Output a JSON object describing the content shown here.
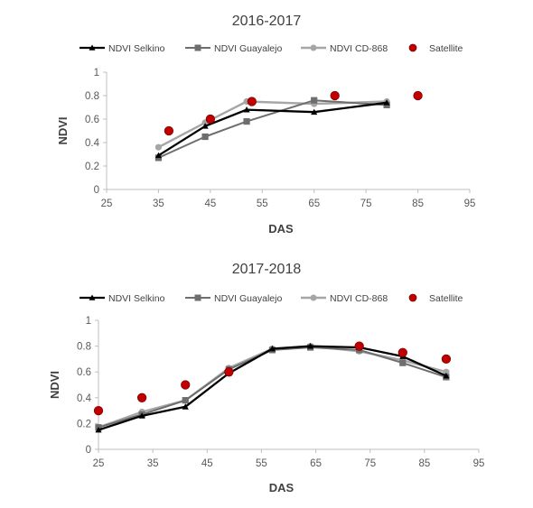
{
  "chart_data": [
    {
      "type": "line",
      "title": "2016-2017",
      "xlabel": "DAS",
      "ylabel": "NDVI",
      "xlim": [
        25,
        95
      ],
      "ylim": [
        0,
        1
      ],
      "xticks": [
        "25",
        "35",
        "45",
        "55",
        "65",
        "75",
        "85",
        "95"
      ],
      "yticks": [
        "0",
        "0.2",
        "0.4",
        "0.6",
        "0.8",
        "1"
      ],
      "grid": false,
      "legend_position": "top",
      "series": [
        {
          "name": "NDVI Selkino",
          "marker": "triangle",
          "color": "#000000",
          "x": [
            35,
            44,
            52,
            65,
            79
          ],
          "y": [
            0.29,
            0.54,
            0.68,
            0.66,
            0.74
          ]
        },
        {
          "name": "NDVI Guayalejo",
          "marker": "square",
          "color": "#6e6e6e",
          "x": [
            35,
            44,
            52,
            65,
            79
          ],
          "y": [
            0.27,
            0.45,
            0.58,
            0.76,
            0.72
          ]
        },
        {
          "name": "NDVI CD-868",
          "marker": "circle",
          "color": "#a6a6a6",
          "x": [
            35,
            44,
            52,
            65,
            79
          ],
          "y": [
            0.36,
            0.57,
            0.75,
            0.73,
            0.75
          ]
        },
        {
          "name": "Satellite",
          "marker": "dot",
          "color": "#c00000",
          "x": [
            37,
            45,
            53,
            69,
            85
          ],
          "y": [
            0.5,
            0.6,
            0.75,
            0.8,
            0.8
          ]
        }
      ]
    },
    {
      "type": "line",
      "title": "2017-2018",
      "xlabel": "DAS",
      "ylabel": "NDVI",
      "xlim": [
        25,
        95
      ],
      "ylim": [
        0,
        1
      ],
      "xticks": [
        "25",
        "35",
        "45",
        "55",
        "65",
        "75",
        "85",
        "95"
      ],
      "yticks": [
        "0",
        "0.2",
        "0.4",
        "0.6",
        "0.8",
        "1"
      ],
      "grid": false,
      "legend_position": "top",
      "series": [
        {
          "name": "NDVI Selkino",
          "marker": "triangle",
          "color": "#000000",
          "x": [
            25,
            33,
            41,
            49,
            57,
            64,
            73,
            81,
            89
          ],
          "y": [
            0.15,
            0.26,
            0.33,
            0.59,
            0.78,
            0.8,
            0.79,
            0.72,
            0.57
          ]
        },
        {
          "name": "NDVI Guayalejo",
          "marker": "square",
          "color": "#6e6e6e",
          "x": [
            25,
            33,
            41,
            49,
            57,
            64,
            73,
            81,
            89
          ],
          "y": [
            0.17,
            0.27,
            0.38,
            0.62,
            0.77,
            0.79,
            0.77,
            0.67,
            0.56
          ]
        },
        {
          "name": "NDVI CD-868",
          "marker": "circle",
          "color": "#a6a6a6",
          "x": [
            25,
            33,
            41,
            49,
            57,
            64,
            73,
            81,
            89
          ],
          "y": [
            0.17,
            0.29,
            0.38,
            0.63,
            0.78,
            0.8,
            0.76,
            0.69,
            0.6
          ]
        },
        {
          "name": "Satellite",
          "marker": "dot",
          "color": "#c00000",
          "x": [
            25,
            33,
            41,
            49,
            73,
            81,
            89
          ],
          "y": [
            0.3,
            0.4,
            0.5,
            0.6,
            0.8,
            0.75,
            0.7
          ]
        }
      ]
    }
  ]
}
